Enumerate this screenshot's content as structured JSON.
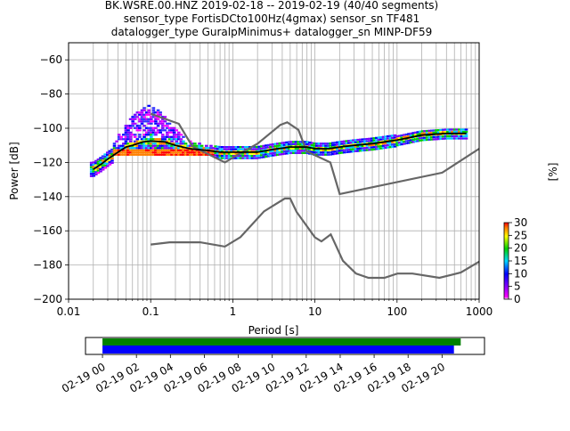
{
  "header": {
    "title_lines": [
      "BK.WSRE.00.HNZ   2019-02-18 -- 2019-02-19  (40/40 segments)",
      "sensor_type FortisDCto100Hz(4gmax) sensor_sn TF481",
      "datalogger_type GuralpMinimus+ datalogger_sn MINP-DF59"
    ]
  },
  "chart_data": [
    {
      "type": "heatmap",
      "title": "BK.WSRE.00.HNZ   2019-02-18 -- 2019-02-19  (40/40 segments)",
      "xlabel": "Period [s]",
      "ylabel": "Power [dB]",
      "xscale": "log",
      "xlim": [
        0.01,
        1000
      ],
      "ylim": [
        -200,
        -50
      ],
      "x_tick_labels": [
        "0.01",
        "0.1",
        "1",
        "10",
        "100",
        "1000"
      ],
      "y_ticks": [
        -60,
        -80,
        -100,
        -120,
        -140,
        -160,
        -180,
        -200
      ],
      "grid": true,
      "colorbar": {
        "label": "[%]",
        "ticks": [
          0,
          5,
          10,
          15,
          20,
          25,
          30
        ],
        "range": [
          0,
          30
        ],
        "colormap": "pqlx"
      },
      "series": [
        {
          "role": "mean",
          "color": "#000000",
          "x": [
            0.02,
            0.025,
            0.03,
            0.04,
            0.05,
            0.06,
            0.08,
            0.1,
            0.15,
            0.2,
            0.3,
            0.5,
            0.7,
            1,
            2,
            3,
            5,
            8,
            10,
            15,
            20,
            30,
            50,
            100,
            200,
            400,
            700
          ],
          "y": [
            -124,
            -121,
            -118,
            -114,
            -111,
            -110,
            -108,
            -107.5,
            -108,
            -110,
            -112,
            -113,
            -114,
            -114,
            -114,
            -112.5,
            -111,
            -111,
            -112,
            -112,
            -111,
            -110,
            -109,
            -107,
            -104,
            -103,
            -103
          ]
        },
        {
          "role": "nhnm",
          "color": "#666666",
          "x": [
            0.1,
            0.22,
            0.32,
            0.8,
            1.2,
            2,
            3.8,
            4.6,
            6.3,
            7.9,
            15.4,
            20,
            354.8,
            1000
          ],
          "y": [
            -91.5,
            -97.4,
            -110.5,
            -120,
            -115,
            -109,
            -98,
            -96.5,
            -101,
            -113.5,
            -120,
            -138.5,
            -126,
            -112
          ]
        },
        {
          "role": "nlnm",
          "color": "#666666",
          "x": [
            0.1,
            0.17,
            0.4,
            0.8,
            1.24,
            2.4,
            4.3,
            5,
            6,
            10,
            12,
            15.6,
            21.9,
            31.6,
            45,
            70,
            101,
            154,
            328,
            600,
            1000
          ],
          "y": [
            -168,
            -166.7,
            -166.7,
            -169.2,
            -163.7,
            -148.6,
            -141.1,
            -141.1,
            -149,
            -163.8,
            -166.2,
            -162.1,
            -177.5,
            -185,
            -187.5,
            -187.5,
            -185,
            -185,
            -187.5,
            -184.4,
            -178
          ]
        }
      ]
    },
    {
      "type": "timeline",
      "x_tick_labels": [
        "02-19 00",
        "02-19 02",
        "02-19 04",
        "02-19 06",
        "02-19 08",
        "02-19 10",
        "02-19 12",
        "02-19 14",
        "02-19 16",
        "02-19 18",
        "02-19 20"
      ],
      "x_ticks_hours": [
        0,
        2,
        4,
        6,
        8,
        10,
        12,
        14,
        16,
        18,
        20
      ],
      "xlim_hours": [
        -1,
        22.5
      ],
      "bars": [
        {
          "name": "data",
          "color": "#008000",
          "start_hours": 0,
          "end_hours": 21.1
        },
        {
          "name": "psd",
          "color": "#0000ff",
          "start_hours": 0,
          "end_hours": 20.7
        }
      ]
    }
  ]
}
